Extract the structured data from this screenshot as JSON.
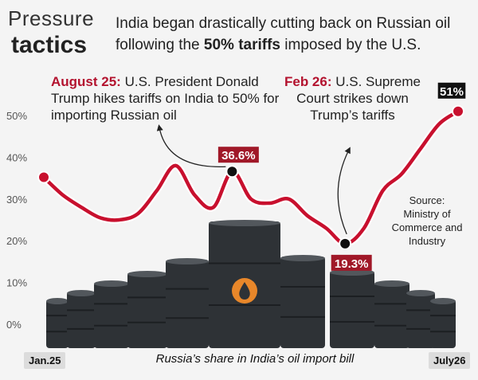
{
  "header": {
    "title_line1": "Pressure",
    "title_line2": "tactics",
    "subtitle_part1": "India began drastically cutting back on Russian oil following the ",
    "subtitle_bold": "50% tariffs",
    "subtitle_part2": " imposed by the U.S."
  },
  "annotations": {
    "a1_date": "August 25:",
    "a1_text": " U.S. President Donald Trump hikes tariffs on India to 50% for importing Russian oil",
    "a2_date": "Feb 26:",
    "a2_text": " U.S. Supreme Court strikes down Trump’s tariffs"
  },
  "source": "Source: Ministry of Commerce and Industry",
  "colors": {
    "line_red": "#c8102e",
    "label_red": "#a01828",
    "label_dark": "#111111",
    "barrel": "#2e3236",
    "drop_icon": "#e8872a"
  },
  "chart_data": {
    "type": "line",
    "title": "",
    "xlabel": "Russia’s share in India’s oil import bill",
    "ylabel": "",
    "x_start_label": "Jan.25",
    "x_end_label": "July26",
    "y_ticks": [
      "0%",
      "10%",
      "20%",
      "30%",
      "40%",
      "50%"
    ],
    "ylim": [
      0,
      55
    ],
    "grid": false,
    "series": [
      {
        "values": [
          35.2,
          31,
          28,
          25.5,
          25,
          26.5,
          32,
          38,
          31,
          28,
          36.6,
          30,
          29,
          30,
          26,
          23,
          19.3,
          23,
          32,
          36,
          42,
          48,
          51
        ]
      }
    ],
    "highlights": [
      {
        "index": 10,
        "label": "36.6%",
        "style": "red"
      },
      {
        "index": 16,
        "label": "19.3%",
        "style": "red"
      },
      {
        "index": 22,
        "label": "51%",
        "style": "dark"
      }
    ],
    "start_marker_index": 0
  }
}
